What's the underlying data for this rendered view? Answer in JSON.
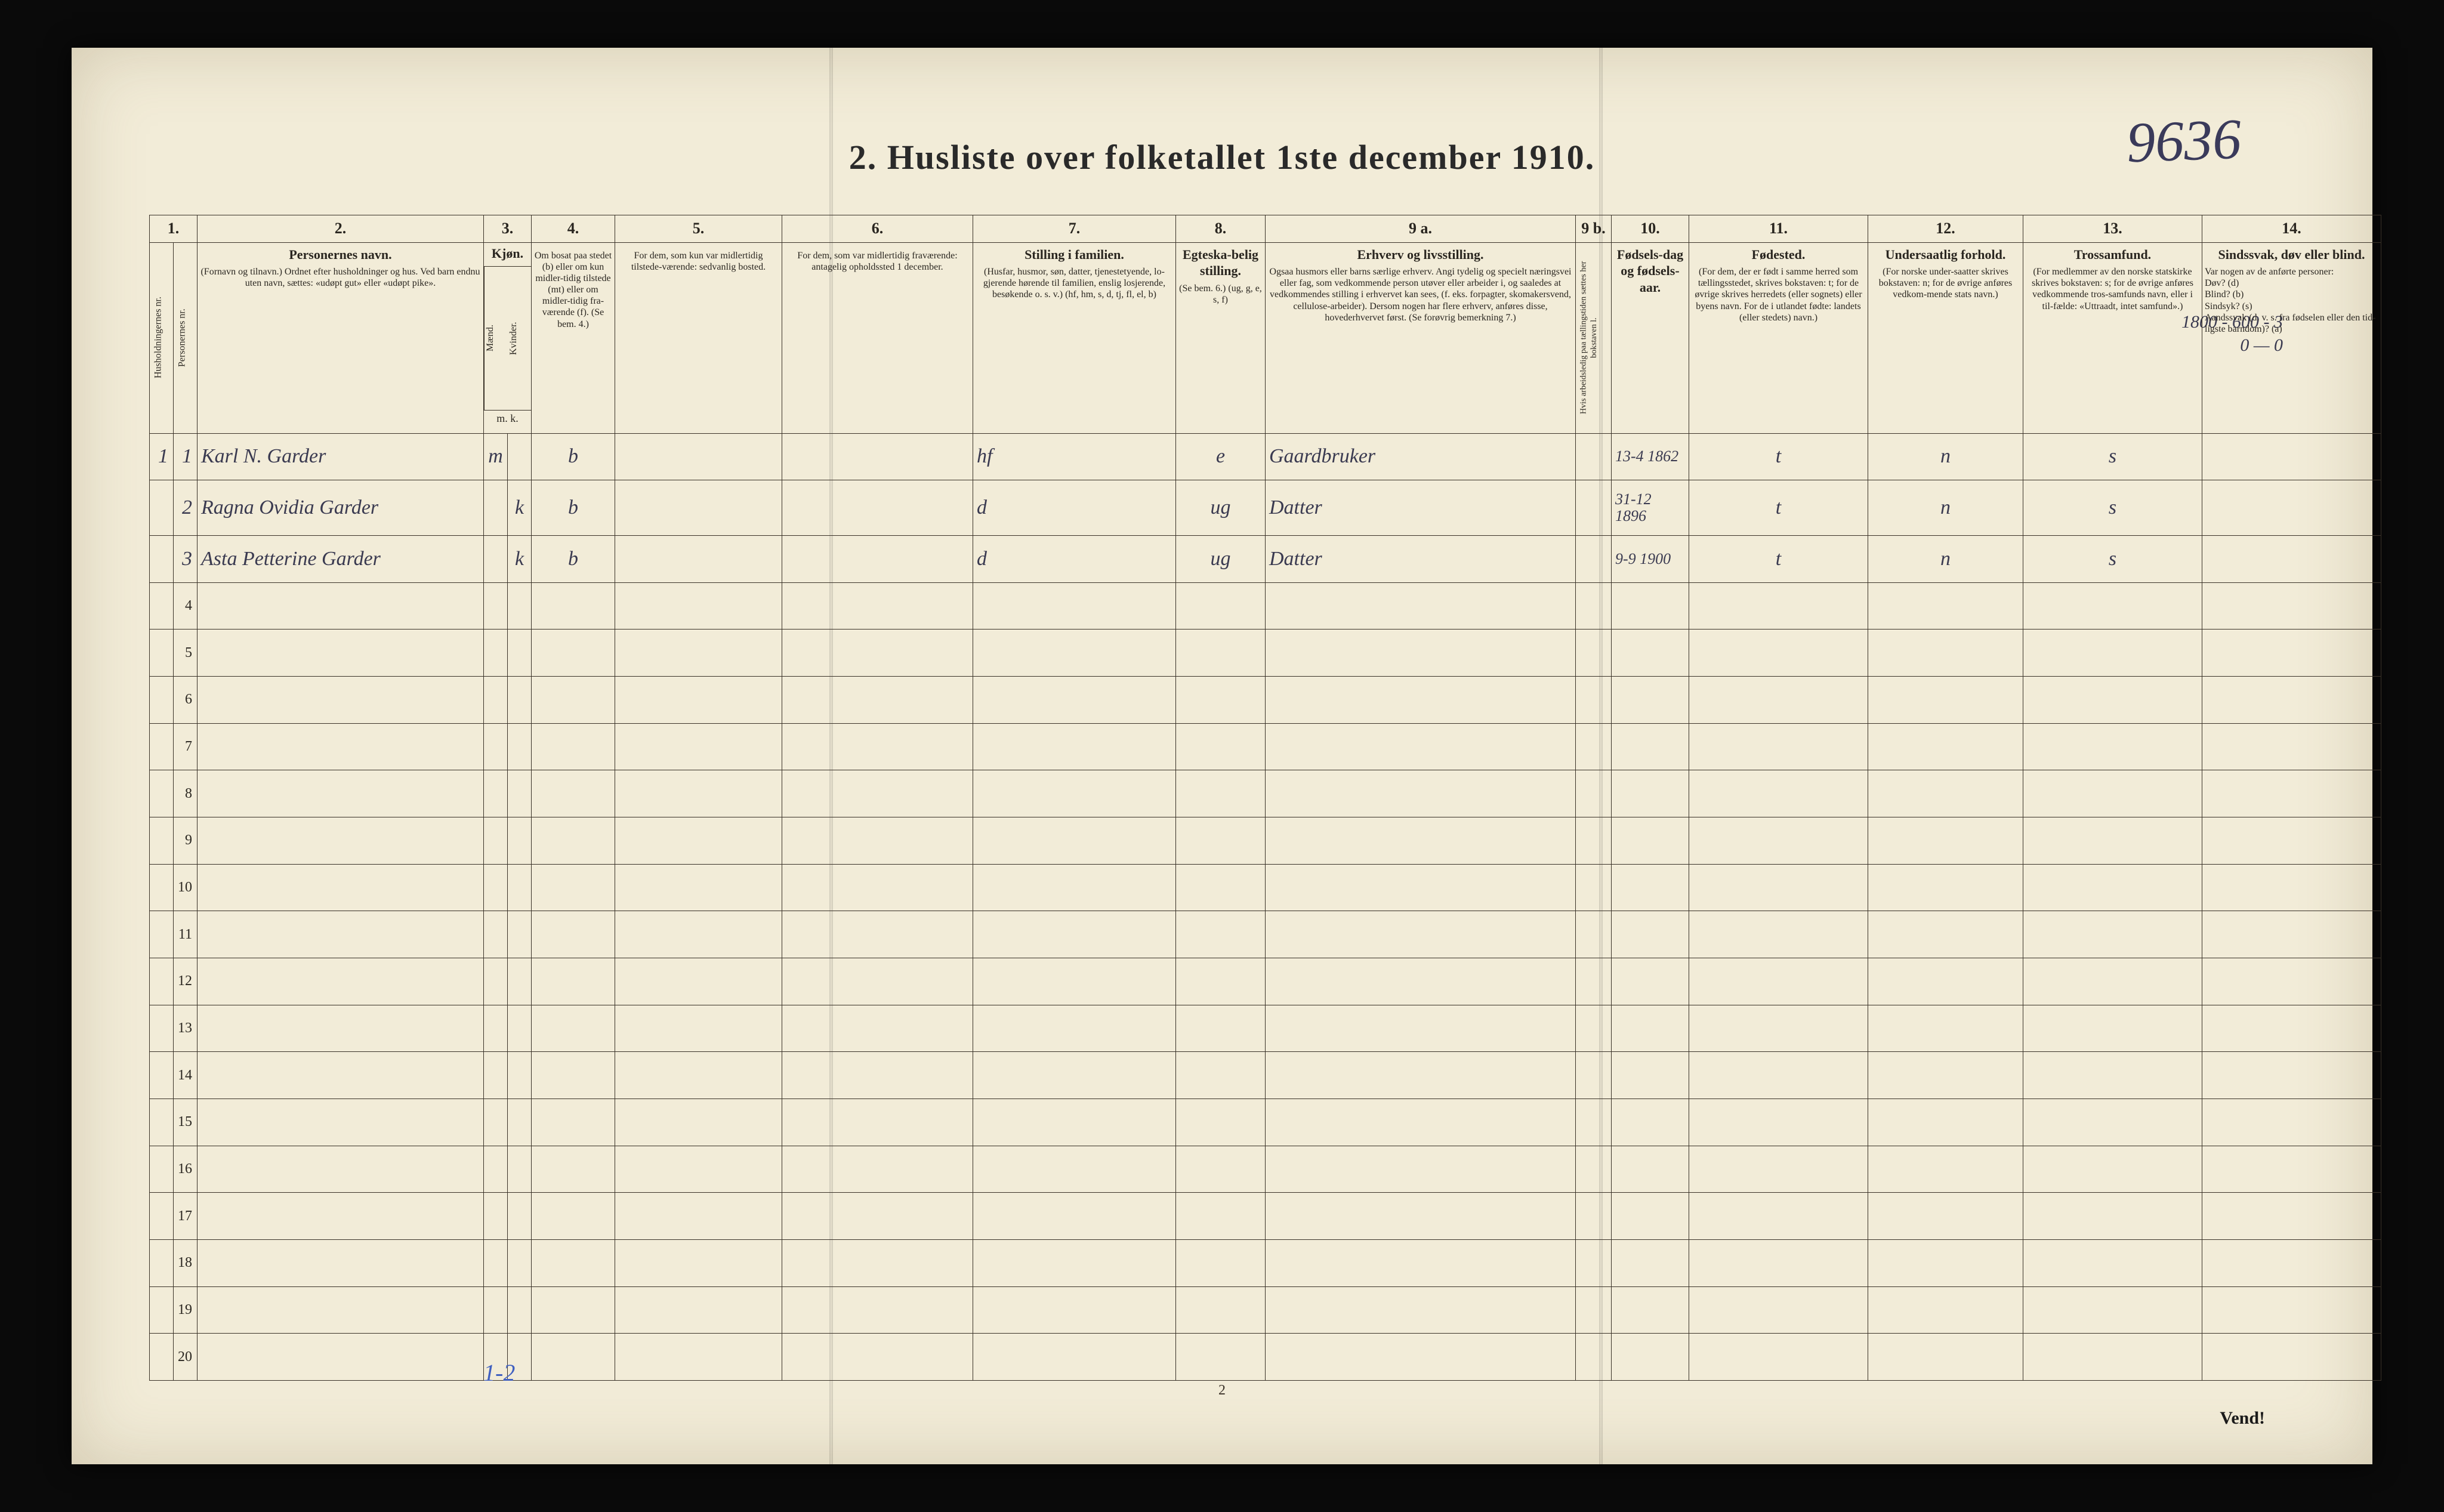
{
  "page": {
    "title": "2.  Husliste over folketallet 1ste december 1910.",
    "handwrittenNumber": "9636",
    "footerPageNum": "2",
    "vend": "Vend!",
    "blueNote": "1-2",
    "cornerNote1": "1800 - 600 - 3",
    "cornerNote2": "0 — 0"
  },
  "colnums": [
    "1.",
    "",
    "2.",
    "3.",
    "",
    "4.",
    "5.",
    "6.",
    "7.",
    "8.",
    "9 a.",
    "9 b.",
    "10.",
    "11.",
    "12.",
    "13.",
    "14."
  ],
  "headers": {
    "hnr": "Husholdningernes nr.",
    "pnr": "Personernes nr.",
    "name": {
      "b": "Personernes navn.",
      "s": "(Fornavn og tilnavn.)\nOrdnet efter husholdninger og hus.\nVed barn endnu uten navn, sættes: «udøpt gut» eller «udøpt pike»."
    },
    "kjon": {
      "b": "Kjøn.",
      "m": "Mænd.",
      "k": "Kvinder.",
      "mk": "m.  k."
    },
    "bosat": {
      "s": "Om bosat paa stedet (b) eller om kun midler-tidig tilstede (mt) eller om midler-tidig fra-værende (f).\n(Se bem. 4.)"
    },
    "midl": {
      "s": "For dem, som kun var midlertidig tilstede-værende:\nsedvanlig bosted."
    },
    "frav": {
      "s": "For dem, som var midlertidig fraværende:\nantagelig opholdssted 1 december."
    },
    "still": {
      "b": "Stilling i familien.",
      "s": "(Husfar, husmor, søn, datter, tjenestetyende, lo-gjerende hørende til familien, enslig losjerende, besøkende o. s. v.)\n(hf, hm, s, d, tj, fl, el, b)"
    },
    "egt": {
      "b": "Egteska-belig stilling.",
      "s": "(Se bem. 6.)\n(ug, g, e, s, f)"
    },
    "erhv": {
      "b": "Erhverv og livsstilling.",
      "s": "Ogsaa husmors eller barns særlige erhverv.\nAngi tydelig og specielt næringsvei eller fag, som vedkommende person utøver eller arbeider i, og saaledes at vedkommendes stilling i erhvervet kan sees, (f. eks. forpagter, skomakersvend, cellulose-arbeider). Dersom nogen har flere erhverv, anføres disse, hovederhvervet først.\n(Se forøvrig bemerkning 7.)"
    },
    "b9b": {
      "s": "Hvis arbeidsledig paa tællingstiden sættes her bokstaven l."
    },
    "fod": {
      "b": "Fødsels-dag og fødsels-aar."
    },
    "fsted": {
      "b": "Fødested.",
      "s": "(For dem, der er født i samme herred som tællingsstedet, skrives bokstaven: t; for de øvrige skrives herredets (eller sognets) eller byens navn.\nFor de i utlandet fødte: landets (eller stedets) navn.)"
    },
    "under": {
      "b": "Undersaatlig forhold.",
      "s": "(For norske under-saatter skrives bokstaven: n; for de øvrige anføres vedkom-mende stats navn.)"
    },
    "tros": {
      "b": "Trossamfund.",
      "s": "(For medlemmer av den norske statskirke skrives bokstaven: s; for de øvrige anføres vedkommende tros-samfunds navn, eller i til-fælde: «Uttraadt, intet samfund».)"
    },
    "sind": {
      "b": "Sindssvak, døv eller blind.",
      "s": "Var nogen av de anførte personer:\nDøv?      (d)\nBlind?     (b)\nSindsyk?  (s)\nAandssvak (d. v. s. fra fødselen eller den tid-ligste barndom)?  (a)"
    }
  },
  "rows": [
    {
      "hnr": "1",
      "pnr": "1",
      "name": "Karl N. Garder",
      "km": "m",
      "kk": "",
      "bosat": "b",
      "midl": "",
      "frav": "",
      "still": "hf",
      "egt": "e",
      "erhv": "Gaardbruker",
      "b9b": "",
      "fod": "13-4 1862",
      "fsted": "t",
      "under": "n",
      "tros": "s",
      "sind": ""
    },
    {
      "hnr": "",
      "pnr": "2",
      "name": "Ragna Ovidia Garder",
      "km": "",
      "kk": "k",
      "bosat": "b",
      "midl": "",
      "frav": "",
      "still": "d",
      "egt": "ug",
      "erhv": "Datter",
      "b9b": "",
      "fod": "31-12 1896",
      "fsted": "t",
      "under": "n",
      "tros": "s",
      "sind": ""
    },
    {
      "hnr": "",
      "pnr": "3",
      "name": "Asta Petterine Garder",
      "km": "",
      "kk": "k",
      "bosat": "b",
      "midl": "",
      "frav": "",
      "still": "d",
      "egt": "ug",
      "erhv": "Datter",
      "b9b": "",
      "fod": "9-9 1900",
      "fsted": "t",
      "under": "n",
      "tros": "s",
      "sind": ""
    }
  ],
  "blankRows": 17
}
